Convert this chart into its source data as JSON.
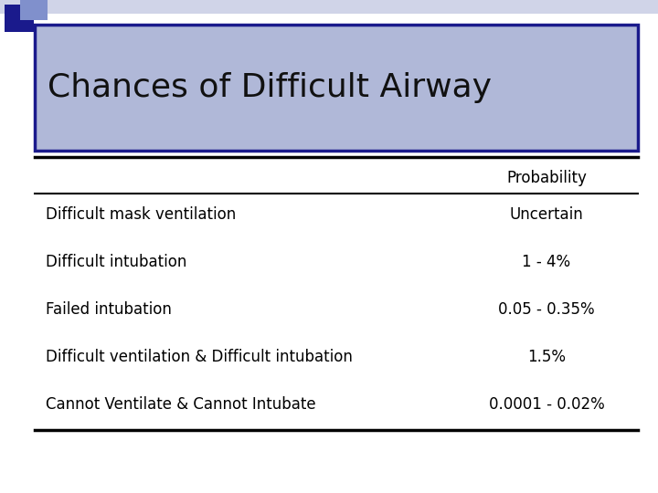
{
  "title": "Chances of Difficult Airway",
  "title_bg_color": "#b0b8d8",
  "title_border_color": "#1a1a8c",
  "col_header": "Probability",
  "rows": [
    [
      "Difficult mask ventilation",
      "Uncertain"
    ],
    [
      "Difficult intubation",
      "1 - 4%"
    ],
    [
      "Failed intubation",
      "0.05 - 0.35%"
    ],
    [
      "Difficult ventilation & Difficult intubation",
      "1.5%"
    ],
    [
      "Cannot Ventilate & Cannot Intubate",
      "0.0001 - 0.02%"
    ]
  ],
  "bg_color": "#ffffff",
  "font_size_title": 26,
  "font_size_table": 12,
  "font_size_header": 12,
  "dec_sq1_color": "#1a1a8c",
  "dec_sq2_color": "#8090cc",
  "dec_gradient_color": "#b0b8d8"
}
